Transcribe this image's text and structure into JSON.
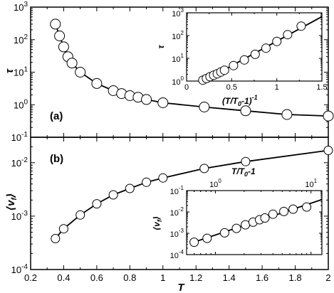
{
  "chart_data": [
    {
      "id": "main-a",
      "type": "scatter",
      "panel_label": "(a)",
      "xlabel": "T",
      "ylabel": "τ",
      "yscale": "log",
      "xlim": [
        0.2,
        2.0
      ],
      "ylim": [
        0.1,
        1000
      ],
      "xticks": [
        0.2,
        0.4,
        0.6,
        0.8,
        1.0,
        1.2,
        1.4,
        1.6,
        1.8,
        2.0
      ],
      "xtick_labels": [],
      "ytick_labels": [
        {
          "base": "10",
          "exp": "-1"
        },
        {
          "base": "10",
          "exp": "0"
        },
        {
          "base": "10",
          "exp": "1"
        },
        {
          "base": "10",
          "exp": "2"
        },
        {
          "base": "10",
          "exp": "3"
        }
      ],
      "yticks": [
        0.1,
        1,
        10,
        100,
        1000
      ],
      "series": [
        {
          "x": [
            0.35,
            0.375,
            0.4,
            0.425,
            0.45,
            0.5,
            0.6,
            0.7,
            0.75,
            0.8,
            0.85,
            0.9,
            1.0,
            1.25,
            1.5,
            1.75,
            2.0
          ],
          "y": [
            300,
            130,
            60,
            30,
            19,
            10,
            4.5,
            2.7,
            2.2,
            1.9,
            1.7,
            1.45,
            1.15,
            0.85,
            0.65,
            0.5,
            0.45
          ]
        }
      ]
    },
    {
      "id": "inset-a",
      "type": "scatter",
      "xlabel": "(T/T0-1)-1",
      "xlabel_parts": {
        "a": "(T/T",
        "sub": "0",
        "b": "-1)",
        "sup": "-1"
      },
      "ylabel": "τ",
      "yscale": "log",
      "xlim": [
        0,
        1.5
      ],
      "ylim": [
        1,
        1000
      ],
      "xticks": [
        0,
        0.5,
        1,
        1.5
      ],
      "xtick_labels": [
        "0",
        "0.5",
        "1",
        "1.5"
      ],
      "yticks": [
        1,
        10,
        100,
        1000
      ],
      "ytick_labels": [
        {
          "base": "10",
          "exp": "0"
        },
        {
          "base": "10",
          "exp": "1"
        },
        {
          "base": "10",
          "exp": "2"
        },
        {
          "base": "10",
          "exp": "3"
        }
      ],
      "series": [
        {
          "x": [
            0.18,
            0.22,
            0.26,
            0.3,
            0.34,
            0.38,
            0.42,
            0.52,
            0.64,
            0.76,
            0.88,
            1.0,
            1.12,
            1.27
          ],
          "y": [
            1.1,
            1.3,
            1.55,
            1.8,
            2.1,
            2.5,
            3,
            4.8,
            8.5,
            15,
            28,
            55,
            110,
            260
          ]
        }
      ]
    },
    {
      "id": "main-b",
      "type": "scatter",
      "panel_label": "(b)",
      "xlabel": "T",
      "ylabel": "⟨v_f⟩",
      "ylabel_parts": {
        "open": "⟨",
        "v": "v",
        "sub": "f",
        "close": "⟩"
      },
      "yscale": "log",
      "xlim": [
        0.2,
        2.0
      ],
      "ylim": [
        0.0001,
        0.03
      ],
      "xticks": [
        0.2,
        0.4,
        0.6,
        0.8,
        1.0,
        1.2,
        1.4,
        1.6,
        1.8,
        2.0
      ],
      "xtick_labels": [
        "0.2",
        "0.4",
        "0.6",
        "0.8",
        "1",
        "1.2",
        "1.4",
        "1.6",
        "1.8",
        "2"
      ],
      "yticks": [
        0.0001,
        0.001,
        0.01
      ],
      "ytick_labels": [
        {
          "base": "10",
          "exp": "-4"
        },
        {
          "base": "10",
          "exp": "-3"
        },
        {
          "base": "10",
          "exp": "-2"
        }
      ],
      "series": [
        {
          "x": [
            0.35,
            0.4,
            0.5,
            0.6,
            0.7,
            0.8,
            0.9,
            1.0,
            1.25,
            1.5,
            2.0
          ],
          "y": [
            0.00038,
            0.00058,
            0.00105,
            0.0017,
            0.0025,
            0.0033,
            0.0043,
            0.0052,
            0.0078,
            0.0105,
            0.017
          ]
        }
      ]
    },
    {
      "id": "inset-b",
      "type": "scatter",
      "xlabel": "T/T0-1",
      "xlabel_parts": {
        "a": "T/T",
        "sub": "0",
        "b": "-1"
      },
      "ylabel": "⟨v_f⟩",
      "xscale": "log",
      "yscale": "log",
      "xlim": [
        0.5,
        13
      ],
      "ylim": [
        0.0001,
        0.1
      ],
      "xticks": [
        1,
        10
      ],
      "xtick_labels": [
        {
          "base": "10",
          "exp": "0"
        },
        {
          "base": "10",
          "exp": "1"
        }
      ],
      "yticks": [
        0.0001,
        0.001,
        0.01,
        0.1
      ],
      "ytick_labels": [
        {
          "base": "10",
          "exp": "-4"
        },
        {
          "base": "10",
          "exp": "-3"
        },
        {
          "base": "10",
          "exp": "-2"
        },
        {
          "base": "10",
          "exp": "-1"
        }
      ],
      "series": [
        {
          "x": [
            0.6,
            0.82,
            1.25,
            1.66,
            2.06,
            2.48,
            2.9,
            3.3,
            4.0,
            5.2,
            6.5,
            9.0
          ],
          "y": [
            0.00038,
            0.00058,
            0.00105,
            0.0017,
            0.0025,
            0.0033,
            0.0043,
            0.0052,
            0.0078,
            0.0105,
            0.0135,
            0.017
          ]
        }
      ]
    }
  ]
}
